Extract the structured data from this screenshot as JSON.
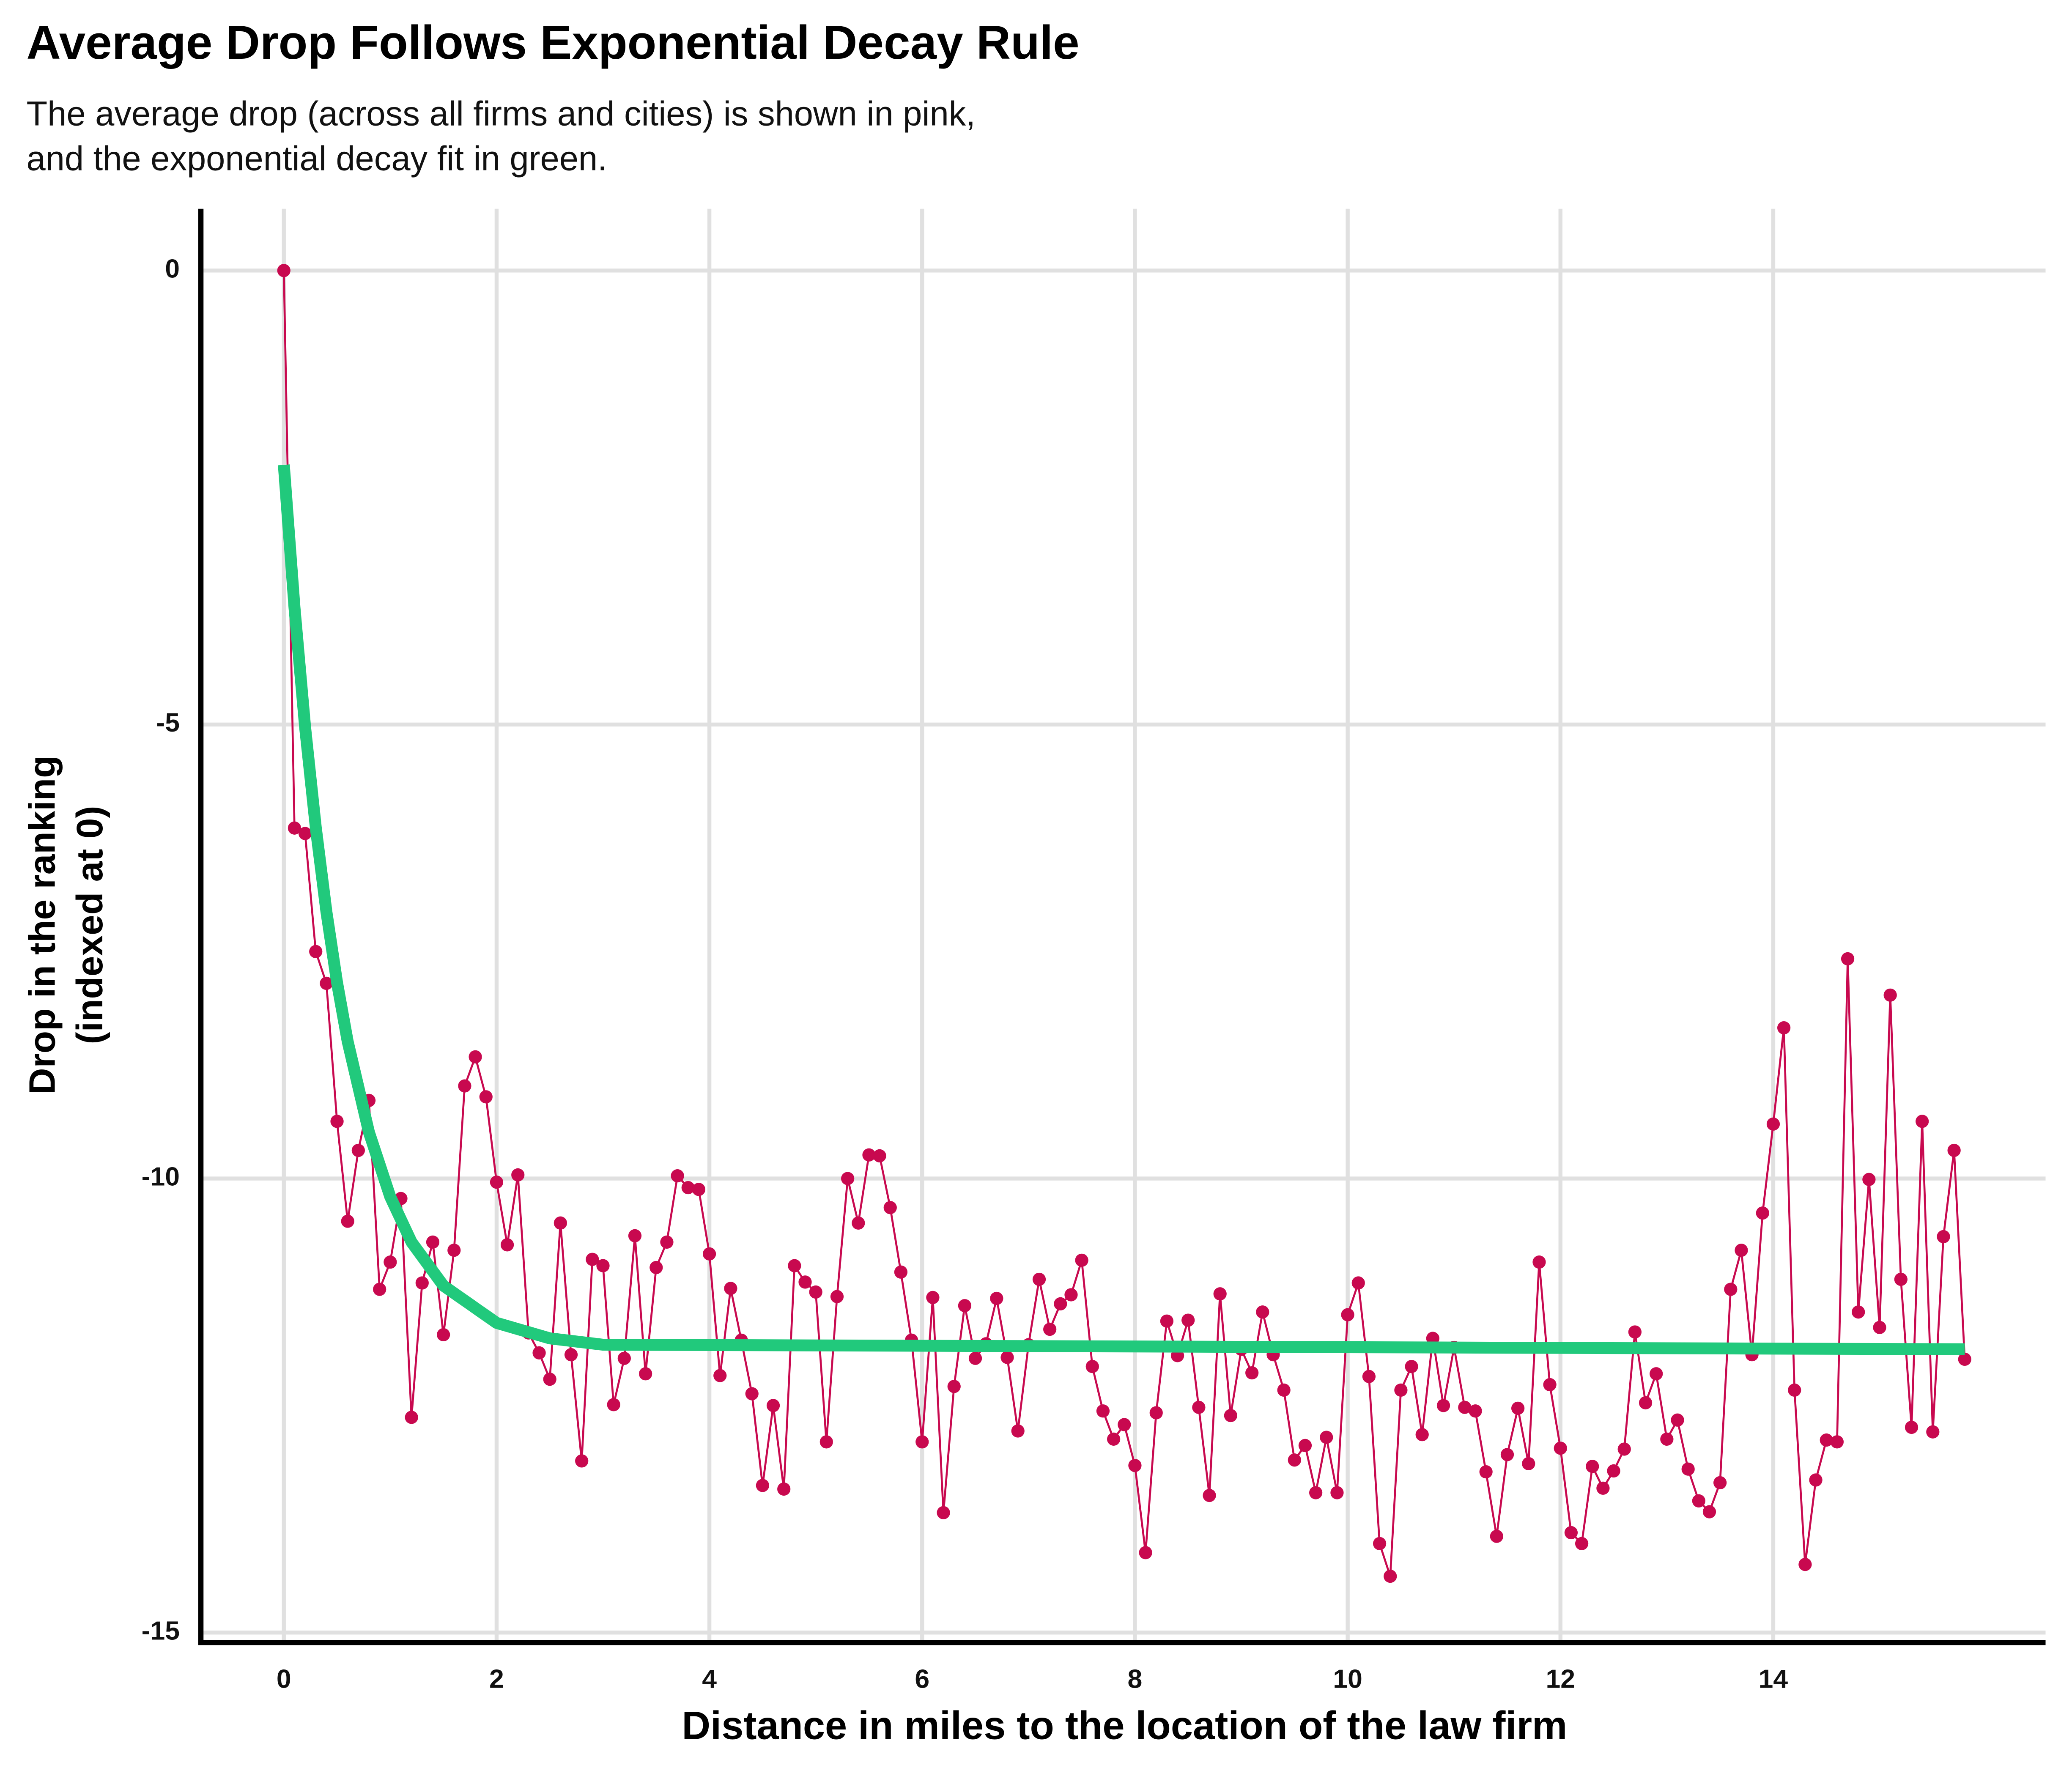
{
  "chart_data": {
    "type": "line",
    "title": "Average Drop Follows Exponential Decay Rule",
    "subtitle": [
      "The average drop (across all firms and cities) is shown in pink,",
      "and the exponential decay fit in green."
    ],
    "x_label": "Distance in miles to the location of the law firm",
    "y_label": [
      "Drop in the ranking",
      "(indexed at 0)"
    ],
    "x": [
      0,
      0.1,
      0.2,
      0.3,
      0.4,
      0.5,
      0.6,
      0.7,
      0.8,
      0.9,
      1,
      1.1,
      1.2,
      1.3,
      1.4,
      1.5,
      1.6,
      1.7,
      1.8,
      1.9,
      2,
      2.1,
      2.2,
      2.3,
      2.4,
      2.5,
      2.6,
      2.7,
      2.8,
      2.9,
      3,
      3.1,
      3.2,
      3.3,
      3.4,
      3.5,
      3.6,
      3.7,
      3.8,
      3.9,
      4,
      4.1,
      4.2,
      4.3,
      4.4,
      4.5,
      4.6,
      4.7,
      4.8,
      4.9,
      5,
      5.1,
      5.2,
      5.3,
      5.4,
      5.5,
      5.6,
      5.7,
      5.8,
      5.9,
      6,
      6.1,
      6.2,
      6.3,
      6.4,
      6.5,
      6.6,
      6.7,
      6.8,
      6.9,
      7,
      7.1,
      7.2,
      7.3,
      7.4,
      7.5,
      7.6,
      7.7,
      7.8,
      7.9,
      8,
      8.1,
      8.2,
      8.3,
      8.4,
      8.5,
      8.6,
      8.7,
      8.8,
      8.9,
      9,
      9.1,
      9.2,
      9.3,
      9.4,
      9.5,
      9.6,
      9.7,
      9.8,
      9.9,
      10,
      10.1,
      10.2,
      10.3,
      10.4,
      10.5,
      10.6,
      10.7,
      10.8,
      10.9,
      11,
      11.1,
      11.2,
      11.3,
      11.4,
      11.5,
      11.6,
      11.7,
      11.8,
      11.9,
      12,
      12.1,
      12.2,
      12.3,
      12.4,
      12.5,
      12.6,
      12.7,
      12.8,
      12.9,
      13,
      13.1,
      13.2,
      13.3,
      13.4,
      13.5,
      13.6,
      13.7,
      13.8,
      13.9,
      14,
      14.1,
      14.2,
      14.3,
      14.4,
      14.5,
      14.6,
      14.7,
      14.8,
      14.9,
      15,
      15.1,
      15.2,
      15.3,
      15.4,
      15.5,
      15.6,
      15.7,
      15.8
    ],
    "series": [
      {
        "color": "#c8094f",
        "values": [
          0,
          -6.14,
          -6.2,
          -7.5,
          -7.85,
          -9.37,
          -10.47,
          -9.69,
          -9.14,
          -11.22,
          -10.92,
          -10.22,
          -12.63,
          -11.15,
          -10.7,
          -11.72,
          -10.79,
          -8.98,
          -8.66,
          -9.1,
          -10.04,
          -10.73,
          -9.96,
          -11.7,
          -11.92,
          -12.21,
          -10.49,
          -11.94,
          -13.11,
          -10.89,
          -10.96,
          -12.49,
          -11.98,
          -10.63,
          -12.15,
          -10.98,
          -10.7,
          -9.97,
          -10.1,
          -10.12,
          -10.83,
          -12.17,
          -11.21,
          -11.78,
          -12.37,
          -13.38,
          -12.5,
          -13.42,
          -10.96,
          -11.14,
          -11.25,
          -12.9,
          -11.3,
          -10,
          -10.49,
          -9.74,
          -9.75,
          -10.32,
          -11.03,
          -11.78,
          -12.9,
          -11.31,
          -13.68,
          -12.29,
          -11.4,
          -11.98,
          -11.82,
          -11.32,
          -11.97,
          -12.78,
          -11.83,
          -11.11,
          -11.66,
          -11.38,
          -11.28,
          -10.9,
          -12.07,
          -12.56,
          -12.87,
          -12.71,
          -13.16,
          -14.12,
          -12.58,
          -11.57,
          -11.95,
          -11.56,
          -12.52,
          -13.49,
          -11.27,
          -12.61,
          -11.88,
          -12.14,
          -11.47,
          -11.94,
          -12.33,
          -13.1,
          -12.94,
          -13.46,
          -12.85,
          -13.46,
          -11.5,
          -11.15,
          -12.18,
          -14.02,
          -14.38,
          -12.33,
          -12.07,
          -12.82,
          -11.76,
          -12.5,
          -11.86,
          -12.52,
          -12.56,
          -13.23,
          -13.94,
          -13.04,
          -12.53,
          -13.14,
          -10.92,
          -12.27,
          -12.97,
          -13.9,
          -14.02,
          -13.17,
          -13.41,
          -13.22,
          -12.98,
          -11.69,
          -12.47,
          -12.15,
          -12.87,
          -12.66,
          -13.2,
          -13.55,
          -13.67,
          -13.35,
          -11.22,
          -10.79,
          -11.94,
          -10.38,
          -9.4,
          -8.34,
          -12.33,
          -14.25,
          -13.32,
          -12.88,
          -12.9,
          -7.58,
          -11.47,
          -10.01,
          -11.64,
          -7.98,
          -11.11,
          -12.74,
          -9.37,
          -12.79,
          -10.64,
          -9.69,
          -11.99
        ]
      },
      {
        "color": "#21c97c",
        "x": [
          0,
          0.1,
          0.2,
          0.3,
          0.4,
          0.5,
          0.6,
          0.8,
          1,
          1.2,
          1.5,
          2,
          2.5,
          3,
          15.8
        ],
        "values": [
          -2.14,
          -3.71,
          -5.03,
          -6.13,
          -7.06,
          -7.84,
          -8.49,
          -9.49,
          -10.2,
          -10.7,
          -11.18,
          -11.59,
          -11.76,
          -11.83,
          -11.88
        ]
      }
    ],
    "xlim": [
      -0.78,
      16.56
    ],
    "ylim": [
      -15.11,
      0.68
    ],
    "xticks": [
      0,
      2,
      4,
      6,
      8,
      10,
      12,
      14
    ],
    "yticks": [
      -15,
      -10,
      -5,
      0
    ],
    "grid": true
  }
}
